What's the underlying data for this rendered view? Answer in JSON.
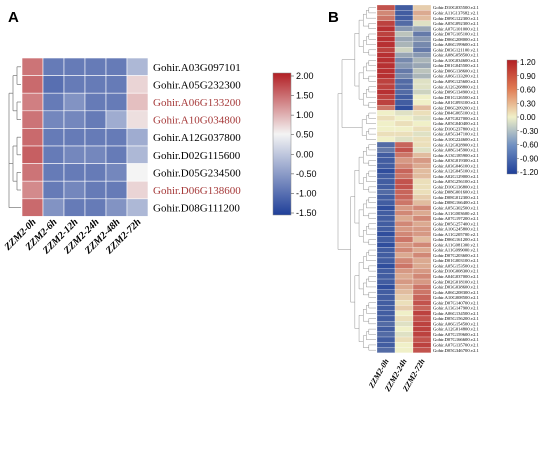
{
  "colors": {
    "low": "#1f3f99",
    "mid": "#f4f4f4",
    "mid_b": "#f0f0c8",
    "high": "#b21f24",
    "highlight_text": "#a63a3a",
    "text": "#000000"
  },
  "chart_data": [
    {
      "type": "heatmap",
      "panel": "A",
      "columns": [
        "ZZM2-0h",
        "ZZM2-6h",
        "ZZM2-12h",
        "ZZM2-24h",
        "ZZM2-48h",
        "ZZM2-72h"
      ],
      "rows": [
        {
          "gene": "Gohir.A03G097101",
          "highlight": false,
          "values": [
            1.2,
            -1.0,
            -1.0,
            -1.0,
            -1.0,
            -0.5
          ]
        },
        {
          "gene": "Gohir.A05G232300",
          "highlight": false,
          "values": [
            1.3,
            -1.1,
            -1.0,
            -1.0,
            -1.0,
            0.3
          ]
        },
        {
          "gene": "Gohir.A06G133200",
          "highlight": true,
          "values": [
            1.1,
            -1.0,
            -0.8,
            -1.0,
            -1.0,
            0.5
          ]
        },
        {
          "gene": "Gohir.A10G034800",
          "highlight": true,
          "values": [
            1.2,
            -0.9,
            -0.9,
            -1.0,
            -0.6,
            0.2
          ]
        },
        {
          "gene": "Gohir.A12G037800",
          "highlight": false,
          "values": [
            1.3,
            -1.0,
            -1.0,
            -1.0,
            -1.0,
            -0.6
          ]
        },
        {
          "gene": "Gohir.D02G115600",
          "highlight": false,
          "values": [
            1.4,
            -1.0,
            -0.9,
            -0.9,
            -1.0,
            -0.5
          ]
        },
        {
          "gene": "Gohir.D05G234500",
          "highlight": false,
          "values": [
            1.2,
            -1.0,
            -1.0,
            -1.0,
            -0.9,
            0.0
          ]
        },
        {
          "gene": "Gohir.D06G138600",
          "highlight": true,
          "values": [
            1.0,
            -1.0,
            -0.9,
            -1.0,
            -1.0,
            0.3
          ]
        },
        {
          "gene": "Gohir.D08G111200",
          "highlight": false,
          "values": [
            1.3,
            -0.8,
            -1.0,
            -1.0,
            -0.8,
            -0.5
          ]
        }
      ],
      "legend": {
        "ticks": [
          "2.00",
          "1.50",
          "1.00",
          "0.50",
          "0.00",
          "-0.50",
          "-1.00",
          "-1.50"
        ],
        "range": [
          -1.5,
          2.0
        ]
      }
    },
    {
      "type": "heatmap",
      "panel": "B",
      "columns": [
        "ZZM2-0h",
        "ZZM2-24h",
        "ZZM2-72h"
      ],
      "rows": [
        {
          "gene": "Gohir.D10G035500.v2.1",
          "values": [
            0.9,
            -1.0,
            0.2
          ]
        },
        {
          "gene": "Gohir.A11G137682.v2.1",
          "values": [
            0.6,
            -1.0,
            0.4
          ]
        },
        {
          "gene": "Gohir.D09G122300.v2.1",
          "values": [
            0.7,
            -1.0,
            0.3
          ]
        },
        {
          "gene": "Gohir.A05G092300.v2.1",
          "values": [
            1.0,
            -0.9,
            -0.1
          ]
        },
        {
          "gene": "Gohir.A07G101000.v2.1",
          "values": [
            1.1,
            -0.6,
            -0.5
          ]
        },
        {
          "gene": "Gohir.D07G105100.v2.1",
          "values": [
            1.0,
            -0.3,
            -0.8
          ]
        },
        {
          "gene": "Gohir.D06G208000.v2.1",
          "values": [
            1.1,
            -0.5,
            -0.6
          ]
        },
        {
          "gene": "Gohir.A06G199600.v2.1",
          "values": [
            1.1,
            -0.4,
            -0.7
          ]
        },
        {
          "gene": "Gohir.D03G121100.v2.1",
          "values": [
            1.0,
            -0.2,
            -0.8
          ]
        },
        {
          "gene": "Gohir.A08G058500.v2.1",
          "values": [
            1.1,
            -0.5,
            -0.6
          ]
        },
        {
          "gene": "Gohir.A10G034600.v2.1",
          "values": [
            1.1,
            -0.7,
            -0.4
          ]
        },
        {
          "gene": "Gohir.D01G045500.v2.1",
          "values": [
            1.1,
            -0.6,
            -0.5
          ]
        },
        {
          "gene": "Gohir.D06G138600.v2.1",
          "values": [
            1.1,
            -0.8,
            -0.3
          ]
        },
        {
          "gene": "Gohir.A06G133200.v2.1",
          "values": [
            1.1,
            -0.7,
            -0.4
          ]
        },
        {
          "gene": "Gohir.A09G125600.v2.1",
          "values": [
            1.0,
            -0.9,
            -0.1
          ]
        },
        {
          "gene": "Gohir.A12G268800.v2.1",
          "values": [
            1.0,
            -0.9,
            -0.1
          ]
        },
        {
          "gene": "Gohir.D09G134900.v2.1",
          "values": [
            1.1,
            -0.9,
            -0.2
          ]
        },
        {
          "gene": "Gohir.D01G126500.v2.1",
          "values": [
            1.0,
            -1.0,
            0.0
          ]
        },
        {
          "gene": "Gohir.A01G093100.v2.1",
          "values": [
            1.0,
            -1.0,
            0.0
          ]
        },
        {
          "gene": "Gohir.D06G209200.v2.1",
          "values": [
            0.7,
            -1.1,
            0.3
          ]
        },
        {
          "gene": "Gohir.D04G065100.v2.1",
          "values": [
            0.0,
            -0.1,
            0.1
          ]
        },
        {
          "gene": "Gohir.A07G027000.v2.1",
          "values": [
            0.1,
            0.0,
            -0.1
          ]
        },
        {
          "gene": "Gohir.A05G040400.v2.1",
          "values": [
            0.0,
            0.1,
            0.0
          ]
        },
        {
          "gene": "Gohir.D10G237800.v2.1",
          "values": [
            0.0,
            0.0,
            0.1
          ]
        },
        {
          "gene": "Gohir.A05G347100.v2.1",
          "values": [
            0.1,
            0.1,
            -0.1
          ]
        },
        {
          "gene": "Gohir.A10G224600.v2.1",
          "values": [
            0.0,
            -0.1,
            0.1
          ]
        },
        {
          "gene": "Gohir.A12G028900.v2.1",
          "values": [
            -0.9,
            0.8,
            0.1
          ]
        },
        {
          "gene": "Gohir.A08G145900.v2.1",
          "values": [
            -0.8,
            0.9,
            -0.1
          ]
        },
        {
          "gene": "Gohir.A13G185900.v2.1",
          "values": [
            -1.0,
            0.7,
            0.3
          ]
        },
        {
          "gene": "Gohir.A03G019300.v2.1",
          "values": [
            -1.0,
            0.5,
            0.5
          ]
        },
        {
          "gene": "Gohir.A03G046100.v2.1",
          "values": [
            -1.0,
            0.6,
            0.4
          ]
        },
        {
          "gene": "Gohir.A12G045100.v2.1",
          "values": [
            -1.1,
            0.8,
            0.3
          ]
        },
        {
          "gene": "Gohir.A02G129000.v2.1",
          "values": [
            -1.0,
            0.7,
            0.3
          ]
        },
        {
          "gene": "Gohir.A05G256100.v2.1",
          "values": [
            -1.0,
            0.9,
            0.1
          ]
        },
        {
          "gene": "Gohir.D10G136800.v2.1",
          "values": [
            -1.0,
            0.9,
            0.1
          ]
        },
        {
          "gene": "Gohir.D08G001600.v2.1",
          "values": [
            -0.9,
            0.8,
            0.1
          ]
        },
        {
          "gene": "Gohir.D08G012300.v2.1",
          "values": [
            -1.0,
            0.8,
            0.2
          ]
        },
        {
          "gene": "Gohir.D08G166400.v2.1",
          "values": [
            -1.0,
            0.7,
            0.3
          ]
        },
        {
          "gene": "Gohir.A05G302500.v2.1",
          "values": [
            -1.1,
            0.5,
            0.6
          ]
        },
        {
          "gene": "Gohir.A11G003600.v2.1",
          "values": [
            -1.0,
            0.6,
            0.4
          ]
        },
        {
          "gene": "Gohir.A07G197200.v2.1",
          "values": [
            -1.0,
            0.4,
            0.6
          ]
        },
        {
          "gene": "Gohir.D05G257400.v2.1",
          "values": [
            -1.0,
            0.6,
            0.4
          ]
        },
        {
          "gene": "Gohir.A10G245800.v2.1",
          "values": [
            -1.0,
            0.5,
            0.5
          ]
        },
        {
          "gene": "Gohir.A11G205700.v2.1",
          "values": [
            -1.1,
            0.6,
            0.5
          ]
        },
        {
          "gene": "Gohir.D06G161200.v2.1",
          "values": [
            -1.0,
            0.7,
            0.3
          ]
        },
        {
          "gene": "Gohir.A11G081300.v2.1",
          "values": [
            -1.1,
            0.5,
            0.6
          ]
        },
        {
          "gene": "Gohir.A11G099000.v2.1",
          "values": [
            -1.0,
            0.6,
            0.4
          ]
        },
        {
          "gene": "Gohir.D07G203600.v2.1",
          "values": [
            -1.0,
            0.4,
            0.6
          ]
        },
        {
          "gene": "Gohir.D01G003100.v2.1",
          "values": [
            -1.0,
            0.6,
            0.4
          ]
        },
        {
          "gene": "Gohir.A05G153500.v2.1",
          "values": [
            -1.1,
            0.7,
            0.4
          ]
        },
        {
          "gene": "Gohir.D10G008300.v2.1",
          "values": [
            -1.0,
            0.5,
            0.5
          ]
        },
        {
          "gene": "Gohir.A04G037000.v2.1",
          "values": [
            -1.0,
            0.4,
            0.6
          ]
        },
        {
          "gene": "Gohir.D02G018100.v2.1",
          "values": [
            -1.0,
            0.5,
            0.5
          ]
        },
        {
          "gene": "Gohir.D03G038600.v2.1",
          "values": [
            -1.1,
            0.4,
            0.7
          ]
        },
        {
          "gene": "Gohir.A06G208300.v2.1",
          "values": [
            -1.0,
            0.3,
            0.7
          ]
        },
        {
          "gene": "Gohir.A10G008500.v2.1",
          "values": [
            -1.0,
            0.2,
            0.8
          ]
        },
        {
          "gene": "Gohir.D07G140700.v2.1",
          "values": [
            -1.0,
            0.1,
            0.9
          ]
        },
        {
          "gene": "Gohir.A13G147900.v2.1",
          "values": [
            -1.0,
            0.2,
            0.8
          ]
        },
        {
          "gene": "Gohir.A06G134500.v2.1",
          "values": [
            -1.0,
            0.0,
            1.0
          ]
        },
        {
          "gene": "Gohir.D05G156200.v2.1",
          "values": [
            -1.0,
            0.1,
            0.9
          ]
        },
        {
          "gene": "Gohir.A06G154500.v2.1",
          "values": [
            -0.9,
            -0.1,
            1.0
          ]
        },
        {
          "gene": "Gohir.A12G014800.v2.1",
          "values": [
            -1.0,
            0.0,
            1.0
          ]
        },
        {
          "gene": "Gohir.A07G159600.v2.1",
          "values": [
            -0.9,
            -0.1,
            1.0
          ]
        },
        {
          "gene": "Gohir.D07G166600.v2.1",
          "values": [
            -1.0,
            0.1,
            0.9
          ]
        },
        {
          "gene": "Gohir.A07G135700.v2.1",
          "values": [
            -1.0,
            0.0,
            1.0
          ]
        },
        {
          "gene": "Gohir.D05G346700.v2.1",
          "values": [
            -0.9,
            0.0,
            0.9
          ]
        }
      ],
      "legend": {
        "ticks": [
          "1.20",
          "0.90",
          "0.60",
          "0.30",
          "0.00",
          "-0.30",
          "-0.60",
          "-0.90",
          "-1.20"
        ],
        "range": [
          -1.2,
          1.2
        ]
      }
    }
  ]
}
